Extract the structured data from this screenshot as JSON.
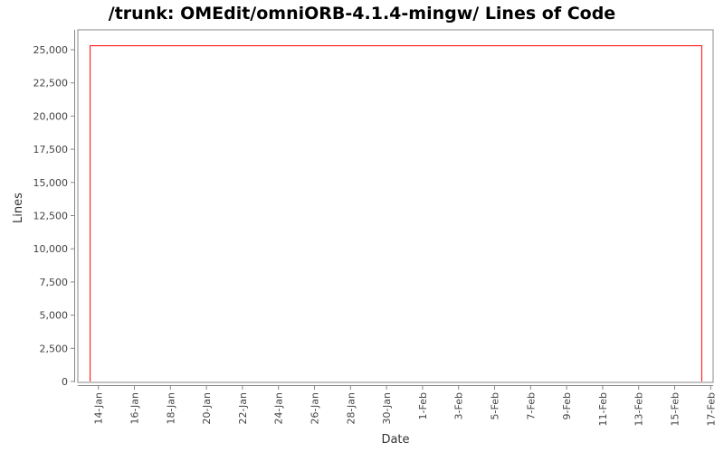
{
  "chart_data": {
    "type": "line",
    "title": "/trunk: OMEdit/omniORB-4.1.4-mingw/ Lines of Code",
    "xlabel": "Date",
    "ylabel": "Lines",
    "ylim": [
      0,
      25000
    ],
    "yticks": [
      "0",
      "2,500",
      "5,000",
      "7,500",
      "10,000",
      "12,500",
      "15,000",
      "17,500",
      "20,000",
      "22,500",
      "25,000"
    ],
    "ytick_values": [
      0,
      2500,
      5000,
      7500,
      10000,
      12500,
      15000,
      17500,
      20000,
      22500,
      25000
    ],
    "xticks": [
      "14-Jan",
      "16-Jan",
      "18-Jan",
      "20-Jan",
      "22-Jan",
      "24-Jan",
      "26-Jan",
      "28-Jan",
      "30-Jan",
      "1-Feb",
      "3-Feb",
      "5-Feb",
      "7-Feb",
      "9-Feb",
      "11-Feb",
      "13-Feb",
      "15-Feb",
      "17-Feb"
    ],
    "grid": false,
    "series": [
      {
        "color": "#ff0000",
        "points": [
          {
            "x": "13-Jan 13:00",
            "y": 0
          },
          {
            "x": "13-Jan 13:00",
            "y": 25300
          },
          {
            "x": "16-Feb 12:00",
            "y": 25300
          },
          {
            "x": "16-Feb 12:00",
            "y": 0
          }
        ]
      }
    ]
  }
}
